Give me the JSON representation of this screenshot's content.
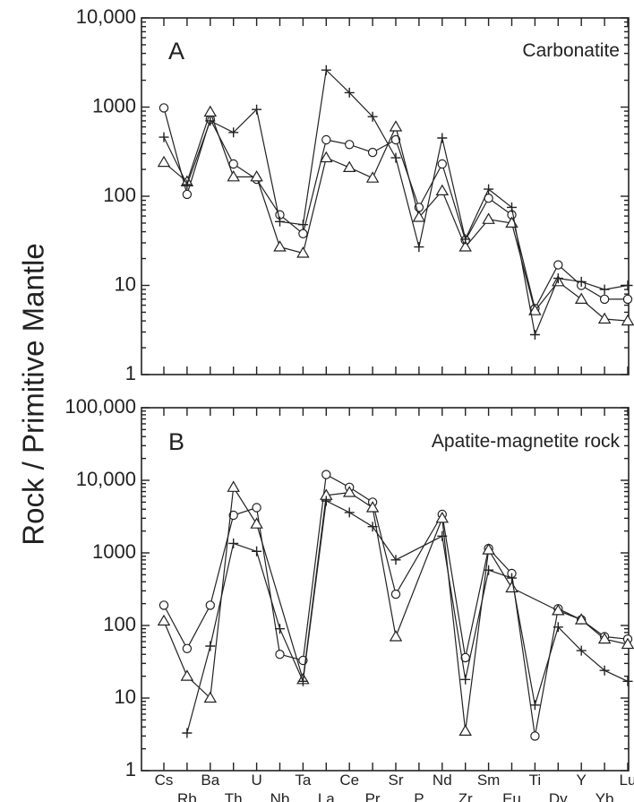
{
  "ylabel": "Rock / Primitive Mantle",
  "chart_data": [
    {
      "type": "line",
      "panel": "A",
      "title": "Carbonatite",
      "yscale": "log",
      "ylim": [
        1,
        10000
      ],
      "ytick_values": [
        1,
        10,
        100,
        1000,
        10000
      ],
      "ytick_labels": [
        "1",
        "10",
        "100",
        "1000",
        "10,000"
      ],
      "categories": [
        "Cs",
        "Rb",
        "Ba",
        "Th",
        "U",
        "Nb",
        "Ta",
        "La",
        "Ce",
        "Pr",
        "Sr",
        "P",
        "Nd",
        "Zr",
        "Sm",
        "Eu",
        "Ti",
        "Dy",
        "Y",
        "Yb",
        "Lu"
      ],
      "series": [
        {
          "marker": "circle",
          "values": [
            980,
            105,
            730,
            230,
            155,
            62,
            38,
            430,
            380,
            310,
            430,
            75,
            230,
            32,
            95,
            62,
            5.5,
            17,
            10,
            7,
            7
          ]
        },
        {
          "marker": "triangle",
          "values": [
            240,
            145,
            880,
            165,
            165,
            27,
            23,
            270,
            210,
            160,
            600,
            58,
            115,
            27,
            55,
            50,
            5.2,
            11,
            7,
            4.2,
            4
          ]
        },
        {
          "marker": "plus",
          "values": [
            460,
            135,
            700,
            520,
            940,
            52,
            48,
            2600,
            1450,
            780,
            270,
            27,
            450,
            33,
            120,
            75,
            2.8,
            12,
            11,
            9,
            10
          ]
        }
      ]
    },
    {
      "type": "line",
      "panel": "B",
      "title": "Apatite-magnetite rock",
      "yscale": "log",
      "ylim": [
        1,
        100000
      ],
      "ytick_values": [
        1,
        10,
        100,
        1000,
        10000,
        100000
      ],
      "ytick_labels": [
        "1",
        "10",
        "100",
        "1000",
        "10,000",
        "100,000"
      ],
      "categories": [
        "Cs",
        "Rb",
        "Ba",
        "Th",
        "U",
        "Nb",
        "Ta",
        "La",
        "Ce",
        "Pr",
        "Sr",
        "P",
        "Nd",
        "Zr",
        "Sm",
        "Eu",
        "Ti",
        "Dy",
        "Y",
        "Yb",
        "Lu"
      ],
      "series": [
        {
          "marker": "circle",
          "values": [
            190,
            48,
            190,
            3300,
            4200,
            40,
            33,
            12000,
            8000,
            5000,
            270,
            null,
            3400,
            36,
            1150,
            520,
            3,
            170,
            120,
            70,
            65
          ]
        },
        {
          "marker": "triangle",
          "values": [
            115,
            20,
            10,
            8000,
            2500,
            null,
            18,
            6200,
            6800,
            4200,
            70,
            null,
            3000,
            3.5,
            1100,
            330,
            null,
            160,
            120,
            65,
            55
          ]
        },
        {
          "marker": "plus",
          "values": [
            null,
            3.3,
            52,
            1350,
            1050,
            90,
            17,
            5200,
            3600,
            2300,
            800,
            null,
            1700,
            18,
            580,
            450,
            8,
            95,
            45,
            24,
            17
          ]
        }
      ]
    }
  ]
}
